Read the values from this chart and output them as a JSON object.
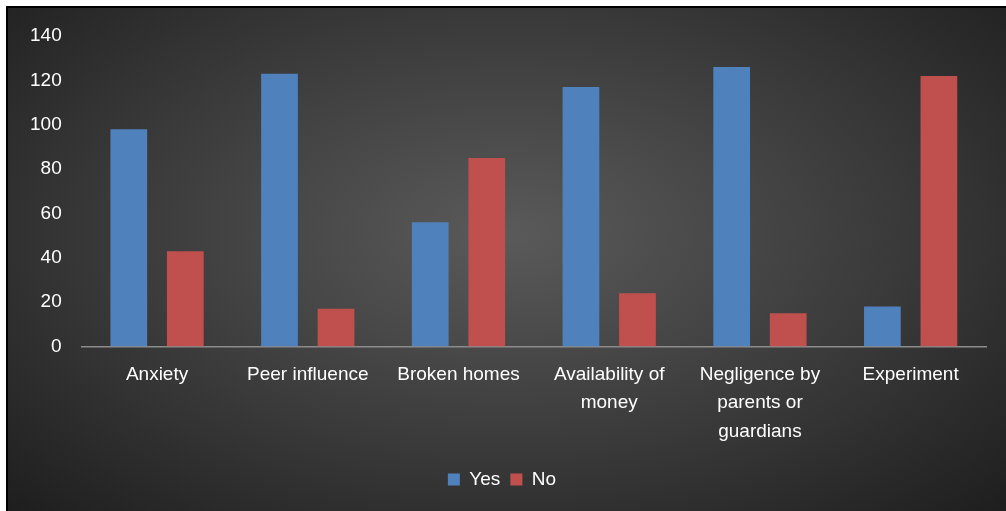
{
  "chart_data": {
    "type": "bar",
    "categories": [
      "Anxiety",
      "Peer influence",
      "Broken homes",
      "Availability of money",
      "Negligence by parents or guardians",
      "Experiment"
    ],
    "series": [
      {
        "name": "Yes",
        "color": "#4f81bd",
        "values": [
          98,
          123,
          56,
          117,
          126,
          18
        ]
      },
      {
        "name": "No",
        "color": "#c0504d",
        "values": [
          43,
          17,
          85,
          24,
          15,
          122
        ]
      }
    ],
    "ylim": [
      0,
      140
    ],
    "yticks": [
      0,
      20,
      40,
      60,
      80,
      100,
      120,
      140
    ],
    "grid": false,
    "legend": "bottom"
  }
}
